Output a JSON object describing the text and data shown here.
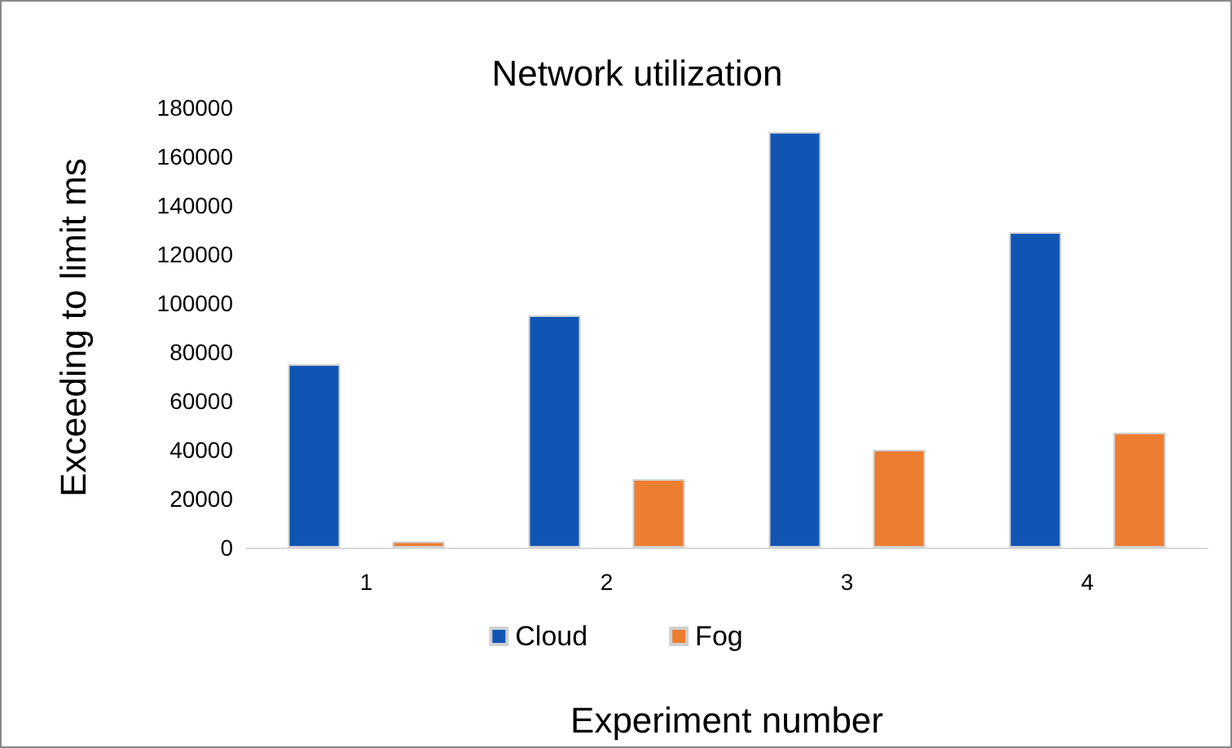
{
  "chart_data": {
    "type": "bar",
    "title": "Network utilization",
    "xlabel": "Experiment number",
    "ylabel": "Exceeding to limit ms",
    "categories": [
      "1",
      "2",
      "3",
      "4"
    ],
    "series": [
      {
        "name": "Cloud",
        "color": "#1155b3",
        "values": [
          75000,
          95000,
          170000,
          129000
        ]
      },
      {
        "name": "Fog",
        "color": "#ed7d31",
        "values": [
          2500,
          28000,
          40000,
          47000
        ]
      }
    ],
    "ylim": [
      0,
      180000
    ],
    "yticks": [
      0,
      20000,
      40000,
      60000,
      80000,
      100000,
      120000,
      140000,
      160000,
      180000
    ],
    "grid": false,
    "legend": "bottom"
  }
}
